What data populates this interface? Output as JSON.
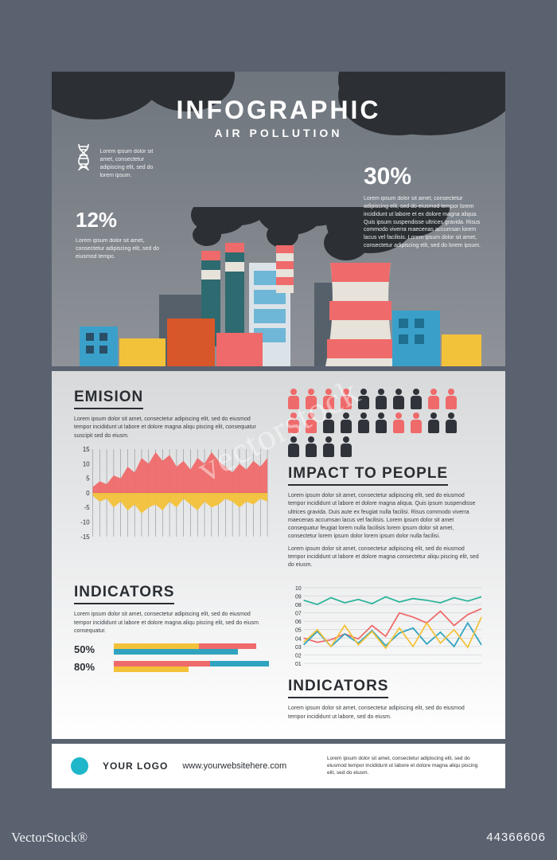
{
  "colors": {
    "page_bg": "#5a6270",
    "hero_bg_top": "#6e757d",
    "hero_bg_bottom": "#8f9399",
    "smoke": "#2c3034",
    "white": "#ffffff",
    "text_dark": "#2a2e33",
    "red": "#ef6a6a",
    "yellow": "#f3c23b",
    "blue": "#2fa3bf",
    "teal": "#2bb39a",
    "dark": "#30343a",
    "grid": "#8a8e92"
  },
  "hero": {
    "title": "INFOGRAPHIC",
    "subtitle": "AIR POLLUTION",
    "left": {
      "value": "12%",
      "body": "Lorem ipsum dolor sit amet, consectetur adipiscing elit, sed do eiusmod tempo."
    },
    "right": {
      "value": "30%",
      "body": "Lorem ipsum dolor sit amet, consectetur adipiscing elit, sed do eiusmod tempor lorem incididunt ut labore et ex dolore magna aliqua. Quis ipsum suspendisse ultrices gravida. Risus commodo viverra maecenas accumsan lorem lacus vel facilisis. Lorem ipsum dolor sit amet, consectetur adipiscing elit, sed do lorem ipsum."
    }
  },
  "emission": {
    "title": "EMISION",
    "body": "Lorem ipsum dolor sit amet, consectetur adipiscing elit, sed do eiusmod tempor incididunt ut labore et dolore magna aliqu piscing elit, consequatur suscipit sed do eiusm.",
    "chart": {
      "type": "area",
      "y_ticks": [
        15,
        10,
        5,
        0,
        -5,
        -10,
        -15
      ],
      "ylim": [
        -15,
        15
      ],
      "x_count": 26,
      "series": [
        {
          "name": "red",
          "color": "#ef6a6a",
          "values": [
            2,
            4,
            3,
            6,
            5,
            9,
            7,
            12,
            10,
            14,
            11,
            13,
            9,
            11,
            8,
            12,
            10,
            14,
            11,
            9,
            7,
            10,
            8,
            11,
            9,
            12
          ]
        },
        {
          "name": "yellow",
          "color": "#f3c23b",
          "values": [
            -1,
            -3,
            -2,
            -5,
            -3,
            -6,
            -4,
            -7,
            -5,
            -4,
            -6,
            -3,
            -5,
            -2,
            -4,
            -6,
            -3,
            -5,
            -4,
            -2,
            -3,
            -5,
            -3,
            -4,
            -2,
            -3
          ]
        }
      ],
      "tick_fontsize": 8,
      "grid_color": "#8a8e92"
    }
  },
  "people": {
    "title": "IMPACT TO PEOPLE",
    "rows": 3,
    "cols": 8,
    "on_color": "#ef6a6a",
    "off_color": "#30343a",
    "pattern": [
      1,
      1,
      1,
      1,
      0,
      0,
      0,
      0,
      1,
      1,
      1,
      1,
      0,
      0,
      0,
      0,
      1,
      1,
      0,
      0,
      0,
      0,
      0,
      0
    ],
    "body1": "Lorem ipsum dolor sit amet, consectetur adipiscing elit, sed do eiusmod tempor incididunt ut labore et dolore magna aliqua. Quis ipsum suspendisse ultrices gravida. Duis aute ex feugiat nulla facilisi. Risus commodo viverra maecenas accumsan lacus vel facilisis. Lorem ipsum dolor sit amet consequatur feugiat lorem nulla facilisis lorem ipsum dolor sit amet, consectetur lorem ipsum dolor lorem ipsum dolor nulla facilisi.",
    "body2": "Lorem ipsum dolor sit amet, consectetur adipiscing elit, sed do eiusmod tempor incididunt ut labore et dolore magna consectetur aliqu piscing elit, sed do eiusm."
  },
  "ind_left": {
    "title": "INDICATORS",
    "body": "Lorem ipsum dolor sit amet, consectetur adipiscing elit, sed do eiusmod tempor incididunt ut labore et dolore magna aliqu piscing elit, sed do eiusm consequatur.",
    "bars": [
      {
        "label": "50%",
        "segments": [
          {
            "color": "#f3c23b",
            "from": 0,
            "to": 55,
            "y": 0
          },
          {
            "color": "#2fa3bf",
            "from": 0,
            "to": 80,
            "y": 7
          },
          {
            "color": "#ef6a6a",
            "from": 55,
            "to": 92,
            "y": 0
          }
        ]
      },
      {
        "label": "80%",
        "segments": [
          {
            "color": "#ef6a6a",
            "from": 0,
            "to": 62,
            "y": 0
          },
          {
            "color": "#f3c23b",
            "from": 0,
            "to": 48,
            "y": 7
          },
          {
            "color": "#2fa3bf",
            "from": 62,
            "to": 100,
            "y": 0
          }
        ]
      }
    ]
  },
  "ind_right": {
    "title": "INDICATORS",
    "body": "Lorem ipsum dolor sit amet, consectetur adipiscing elit, sed do eiusmod tempor incididunt ut labore, sed do eiusm.",
    "chart": {
      "type": "line",
      "y_ticks": [
        10,
        9,
        8,
        7,
        6,
        5,
        4,
        3,
        2,
        1
      ],
      "tick_labels": [
        "10",
        "09",
        "08",
        "07",
        "06",
        "05",
        "04",
        "03",
        "02",
        "01"
      ],
      "ylim": [
        1,
        10
      ],
      "x_count": 14,
      "grid_color": "#c3c5c8",
      "series": [
        {
          "color": "#2bb39a",
          "values": [
            8.5,
            8.0,
            8.8,
            8.2,
            8.6,
            8.1,
            8.9,
            8.3,
            8.7,
            8.5,
            8.2,
            8.8,
            8.4,
            8.9
          ]
        },
        {
          "color": "#ef6a6a",
          "values": [
            4.0,
            3.5,
            3.8,
            4.5,
            3.9,
            5.5,
            4.2,
            7.0,
            6.5,
            5.8,
            7.2,
            5.5,
            6.8,
            7.5
          ]
        },
        {
          "color": "#2fa3bf",
          "values": [
            3.2,
            4.8,
            3.0,
            4.5,
            3.4,
            4.9,
            3.1,
            4.6,
            5.2,
            3.3,
            4.7,
            3.0,
            5.8,
            3.2
          ]
        },
        {
          "color": "#f3c23b",
          "values": [
            3.5,
            5.0,
            3.0,
            5.5,
            3.2,
            4.8,
            2.8,
            5.2,
            3.0,
            5.8,
            3.4,
            5.0,
            2.9,
            6.5
          ]
        }
      ]
    }
  },
  "footer": {
    "logo_text": "YOUR LOGO",
    "logo_color": "#1fb6c9",
    "url": "www.yourwebsitehere.com",
    "body": "Lorem ipsum dolor sit amet, consectetur adipiscing elit, sed do eiusmod tempor incididunt ut labore et dolore magna aliqu piscing elit, sed do eiusm."
  },
  "watermark": {
    "center": "vectorstock",
    "bl": "VectorStock®",
    "br": "44366606"
  }
}
